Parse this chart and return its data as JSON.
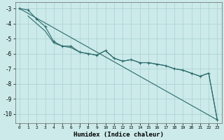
{
  "xlabel": "Humidex (Indice chaleur)",
  "bg_color": "#cceaea",
  "grid_color": "#aacfcf",
  "line_color": "#2d6b6b",
  "xlim": [
    -0.5,
    23.5
  ],
  "ylim": [
    -10.6,
    -2.6
  ],
  "yticks": [
    -3,
    -4,
    -5,
    -6,
    -7,
    -8,
    -9,
    -10
  ],
  "xticks": [
    0,
    1,
    2,
    3,
    4,
    5,
    6,
    7,
    8,
    9,
    10,
    11,
    12,
    13,
    14,
    15,
    16,
    17,
    18,
    19,
    20,
    21,
    22,
    23
  ],
  "line1_x": [
    0,
    1,
    2,
    3,
    4,
    5,
    6,
    7,
    8,
    9,
    10,
    11,
    12,
    13,
    14,
    15,
    16,
    17,
    18,
    19,
    20,
    21,
    22,
    23
  ],
  "line1_y": [
    -3.0,
    -3.1,
    -3.7,
    -4.2,
    -5.2,
    -5.5,
    -5.5,
    -5.9,
    -6.0,
    -6.1,
    -5.8,
    -6.3,
    -6.5,
    -6.4,
    -6.6,
    -6.6,
    -6.7,
    -6.8,
    -7.0,
    -7.1,
    -7.3,
    -7.5,
    -7.3,
    -10.4
  ],
  "line2_x": [
    1,
    2,
    3,
    4,
    5,
    6,
    7,
    8,
    9,
    10,
    11,
    12,
    13,
    14,
    15,
    16,
    17,
    18,
    19,
    20,
    21,
    22,
    23
  ],
  "line2_y": [
    -3.5,
    -4.0,
    -4.5,
    -5.3,
    -5.5,
    -5.6,
    -5.9,
    -6.0,
    -6.1,
    -5.8,
    -6.3,
    -6.5,
    -6.4,
    -6.6,
    -6.6,
    -6.7,
    -6.8,
    -7.0,
    -7.1,
    -7.3,
    -7.5,
    -7.3,
    -10.4
  ],
  "line3_x": [
    0,
    23
  ],
  "line3_y": [
    -3.0,
    -10.4
  ]
}
